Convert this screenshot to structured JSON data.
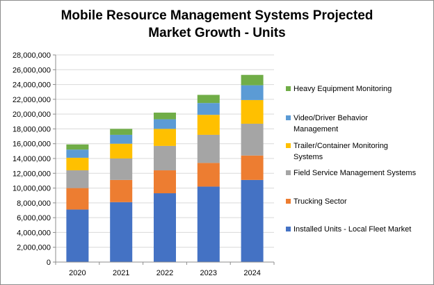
{
  "chart_data": {
    "type": "bar",
    "stacked": true,
    "title": "Mobile Resource Management  Systems Projected\nMarket Growth - Units",
    "xlabel": "",
    "ylabel": "",
    "ylim": [
      0,
      28000000
    ],
    "yticks": [
      "0",
      "2,000,000",
      "4,000,000",
      "6,000,000",
      "8,000,000",
      "10,000,000",
      "12,000,000",
      "14,000,000",
      "16,000,000",
      "18,000,000",
      "20,000,000",
      "22,000,000",
      "24,000,000",
      "26,000,000",
      "28,000,000"
    ],
    "ytick_values": [
      0,
      2000000,
      4000000,
      6000000,
      8000000,
      10000000,
      12000000,
      14000000,
      16000000,
      18000000,
      20000000,
      22000000,
      24000000,
      26000000,
      28000000
    ],
    "categories": [
      "2020",
      "2021",
      "2022",
      "2023",
      "2024"
    ],
    "grid": true,
    "legend_position": "right",
    "series": [
      {
        "name": "Installed Units - Local Fleet Market",
        "color": "#4472c4",
        "values": [
          7100000,
          8100000,
          9300000,
          10200000,
          11100000
        ]
      },
      {
        "name": "Trucking Sector",
        "color": "#ed7d31",
        "values": [
          2900000,
          3000000,
          3100000,
          3200000,
          3300000
        ]
      },
      {
        "name": "Field Service Management Systems",
        "color": "#a5a5a5",
        "values": [
          2400000,
          2900000,
          3300000,
          3800000,
          4300000
        ]
      },
      {
        "name": "Trailer/Container Monitoring Systems",
        "color": "#ffc000",
        "values": [
          1700000,
          2000000,
          2300000,
          2700000,
          3200000
        ]
      },
      {
        "name": "Video/Driver Behavior Management",
        "color": "#5b9bd5",
        "values": [
          1100000,
          1200000,
          1300000,
          1600000,
          2000000
        ]
      },
      {
        "name": "Heavy Equipment Monitoring",
        "color": "#70ad47",
        "values": [
          700000,
          800000,
          900000,
          1100000,
          1400000
        ]
      }
    ],
    "legend_labels": [
      [
        "Heavy Equipment Monitoring"
      ],
      [
        "Video/Driver Behavior",
        "Management"
      ],
      [
        "Trailer/Container Monitoring",
        "Systems"
      ],
      [
        "Field Service Management Systems"
      ],
      [
        "Trucking Sector"
      ],
      [
        "Installed Units - Local Fleet Market"
      ]
    ]
  }
}
